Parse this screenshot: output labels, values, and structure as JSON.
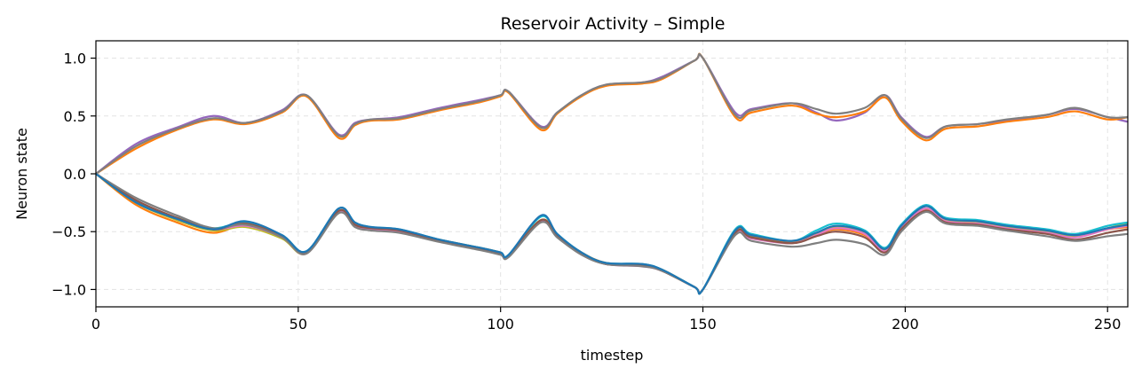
{
  "chart_data": {
    "type": "line",
    "title": "Reservoir Activity – Simple",
    "xlabel": "timestep",
    "ylabel": "Neuron state",
    "xlim": [
      0,
      255
    ],
    "ylim": [
      -1.15,
      1.15
    ],
    "x_ticks": [
      0,
      50,
      100,
      150,
      200,
      250
    ],
    "x_tick_labels": [
      "0",
      "50",
      "100",
      "150",
      "200",
      "250"
    ],
    "y_ticks": [
      1.0,
      0.5,
      0.0,
      -0.5,
      -1.0
    ],
    "y_tick_labels": [
      "1.0",
      "0.5",
      "0.0",
      "−0.5",
      "−1.0"
    ],
    "grid": true,
    "legend": "none",
    "x": [
      0,
      10,
      20,
      29,
      37,
      46,
      52,
      60,
      64,
      68,
      75,
      85,
      95,
      100,
      102,
      110,
      114,
      120,
      126,
      135,
      140,
      148,
      150,
      158,
      162,
      172,
      178,
      183,
      190,
      195,
      199,
      205,
      210,
      218,
      225,
      235,
      242,
      250,
      255
    ],
    "series": [
      {
        "color": "#9467bd",
        "values": [
          0.0,
          0.26,
          0.4,
          0.5,
          0.44,
          0.55,
          0.68,
          0.34,
          0.44,
          0.47,
          0.49,
          0.57,
          0.64,
          0.68,
          0.71,
          0.41,
          0.53,
          0.68,
          0.77,
          0.79,
          0.84,
          0.98,
          1.0,
          0.53,
          0.56,
          0.61,
          0.53,
          0.46,
          0.53,
          0.68,
          0.49,
          0.32,
          0.41,
          0.43,
          0.46,
          0.51,
          0.56,
          0.49,
          0.45
        ]
      },
      {
        "color": "#ff7f0e",
        "values": [
          0.0,
          0.22,
          0.38,
          0.47,
          0.43,
          0.53,
          0.67,
          0.31,
          0.42,
          0.46,
          0.47,
          0.55,
          0.62,
          0.67,
          0.7,
          0.38,
          0.52,
          0.67,
          0.76,
          0.78,
          0.82,
          0.98,
          1.0,
          0.49,
          0.53,
          0.59,
          0.52,
          0.49,
          0.54,
          0.66,
          0.46,
          0.29,
          0.39,
          0.41,
          0.45,
          0.49,
          0.54,
          0.47,
          0.49
        ]
      },
      {
        "color": "#7f7f7f",
        "values": [
          0.0,
          0.24,
          0.39,
          0.48,
          0.44,
          0.54,
          0.68,
          0.33,
          0.43,
          0.47,
          0.48,
          0.56,
          0.63,
          0.68,
          0.71,
          0.4,
          0.53,
          0.68,
          0.77,
          0.79,
          0.83,
          0.98,
          1.0,
          0.51,
          0.55,
          0.61,
          0.56,
          0.52,
          0.57,
          0.68,
          0.48,
          0.31,
          0.41,
          0.43,
          0.47,
          0.51,
          0.57,
          0.49,
          0.49
        ]
      },
      {
        "color": "#ff7f0e",
        "values": [
          -0.0,
          -0.27,
          -0.42,
          -0.51,
          -0.44,
          -0.55,
          -0.68,
          -0.33,
          -0.44,
          -0.47,
          -0.49,
          -0.57,
          -0.64,
          -0.68,
          -0.71,
          -0.4,
          -0.53,
          -0.68,
          -0.77,
          -0.79,
          -0.83,
          -0.98,
          -1.0,
          -0.5,
          -0.54,
          -0.59,
          -0.53,
          -0.48,
          -0.53,
          -0.66,
          -0.47,
          -0.31,
          -0.4,
          -0.42,
          -0.46,
          -0.5,
          -0.54,
          -0.48,
          -0.46
        ]
      },
      {
        "color": "#bcbd22",
        "values": [
          -0.0,
          -0.25,
          -0.4,
          -0.49,
          -0.46,
          -0.56,
          -0.69,
          -0.33,
          -0.45,
          -0.48,
          -0.5,
          -0.58,
          -0.65,
          -0.69,
          -0.71,
          -0.4,
          -0.54,
          -0.69,
          -0.78,
          -0.79,
          -0.84,
          -0.98,
          -1.0,
          -0.51,
          -0.55,
          -0.6,
          -0.52,
          -0.46,
          -0.51,
          -0.66,
          -0.46,
          -0.3,
          -0.4,
          -0.42,
          -0.46,
          -0.5,
          -0.54,
          -0.47,
          -0.43
        ]
      },
      {
        "color": "#e377c2",
        "values": [
          -0.0,
          -0.24,
          -0.39,
          -0.48,
          -0.45,
          -0.55,
          -0.69,
          -0.33,
          -0.45,
          -0.48,
          -0.5,
          -0.58,
          -0.65,
          -0.69,
          -0.71,
          -0.41,
          -0.54,
          -0.69,
          -0.78,
          -0.8,
          -0.84,
          -0.98,
          -1.0,
          -0.52,
          -0.56,
          -0.6,
          -0.53,
          -0.47,
          -0.52,
          -0.67,
          -0.47,
          -0.3,
          -0.41,
          -0.43,
          -0.47,
          -0.51,
          -0.55,
          -0.48,
          -0.45
        ]
      },
      {
        "color": "#17becf",
        "values": [
          -0.0,
          -0.24,
          -0.38,
          -0.47,
          -0.42,
          -0.53,
          -0.67,
          -0.3,
          -0.42,
          -0.46,
          -0.48,
          -0.57,
          -0.64,
          -0.68,
          -0.7,
          -0.37,
          -0.52,
          -0.68,
          -0.77,
          -0.78,
          -0.83,
          -0.98,
          -1.0,
          -0.48,
          -0.52,
          -0.58,
          -0.49,
          -0.43,
          -0.49,
          -0.64,
          -0.44,
          -0.27,
          -0.38,
          -0.4,
          -0.44,
          -0.48,
          -0.52,
          -0.45,
          -0.42
        ]
      },
      {
        "color": "#8c564b",
        "values": [
          -0.0,
          -0.23,
          -0.38,
          -0.48,
          -0.43,
          -0.54,
          -0.68,
          -0.32,
          -0.44,
          -0.47,
          -0.49,
          -0.58,
          -0.65,
          -0.69,
          -0.71,
          -0.4,
          -0.54,
          -0.69,
          -0.78,
          -0.79,
          -0.84,
          -0.98,
          -1.0,
          -0.51,
          -0.55,
          -0.6,
          -0.54,
          -0.5,
          -0.55,
          -0.68,
          -0.48,
          -0.32,
          -0.42,
          -0.44,
          -0.48,
          -0.52,
          -0.57,
          -0.51,
          -0.48
        ]
      },
      {
        "color": "#7f7f7f",
        "values": [
          -0.0,
          -0.21,
          -0.36,
          -0.47,
          -0.44,
          -0.55,
          -0.69,
          -0.34,
          -0.46,
          -0.49,
          -0.51,
          -0.59,
          -0.66,
          -0.7,
          -0.72,
          -0.42,
          -0.55,
          -0.7,
          -0.78,
          -0.8,
          -0.84,
          -0.98,
          -1.0,
          -0.53,
          -0.58,
          -0.63,
          -0.6,
          -0.57,
          -0.61,
          -0.7,
          -0.5,
          -0.33,
          -0.43,
          -0.45,
          -0.49,
          -0.54,
          -0.58,
          -0.54,
          -0.52
        ]
      },
      {
        "color": "#1f77b4",
        "values": [
          -0.0,
          -0.25,
          -0.39,
          -0.48,
          -0.41,
          -0.53,
          -0.67,
          -0.3,
          -0.42,
          -0.46,
          -0.48,
          -0.57,
          -0.64,
          -0.68,
          -0.7,
          -0.36,
          -0.52,
          -0.68,
          -0.77,
          -0.78,
          -0.83,
          -0.98,
          -1.0,
          -0.49,
          -0.53,
          -0.58,
          -0.51,
          -0.45,
          -0.5,
          -0.65,
          -0.45,
          -0.28,
          -0.39,
          -0.41,
          -0.45,
          -0.49,
          -0.53,
          -0.47,
          -0.44
        ]
      }
    ]
  }
}
